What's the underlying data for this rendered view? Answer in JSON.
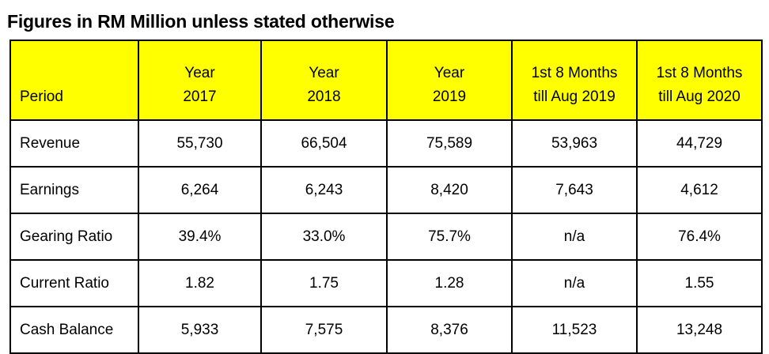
{
  "title": "Figures in RM Million unless stated otherwise",
  "header": {
    "period": "Period",
    "columns": [
      {
        "line1": "Year",
        "line2": "2017"
      },
      {
        "line1": "Year",
        "line2": "2018"
      },
      {
        "line1": "Year",
        "line2": "2019"
      },
      {
        "line1": "1st 8 Months",
        "line2": "till Aug 2019"
      },
      {
        "line1": "1st 8 Months",
        "line2": "till Aug 2020"
      }
    ]
  },
  "rows": [
    {
      "label": "Revenue",
      "values": [
        "55,730",
        "66,504",
        "75,589",
        "53,963",
        "44,729"
      ]
    },
    {
      "label": "Earnings",
      "values": [
        "6,264",
        "6,243",
        "8,420",
        "7,643",
        "4,612"
      ]
    },
    {
      "label": "Gearing Ratio",
      "values": [
        "39.4%",
        "33.0%",
        "75.7%",
        "n/a",
        "76.4%"
      ]
    },
    {
      "label": "Current Ratio",
      "values": [
        "1.82",
        "1.75",
        "1.28",
        "n/a",
        "1.55"
      ]
    },
    {
      "label": "Cash Balance",
      "values": [
        "5,933",
        "7,575",
        "8,376",
        "11,523",
        "13,248"
      ]
    }
  ],
  "colors": {
    "header_background": "#ffff00",
    "border": "#000000"
  }
}
